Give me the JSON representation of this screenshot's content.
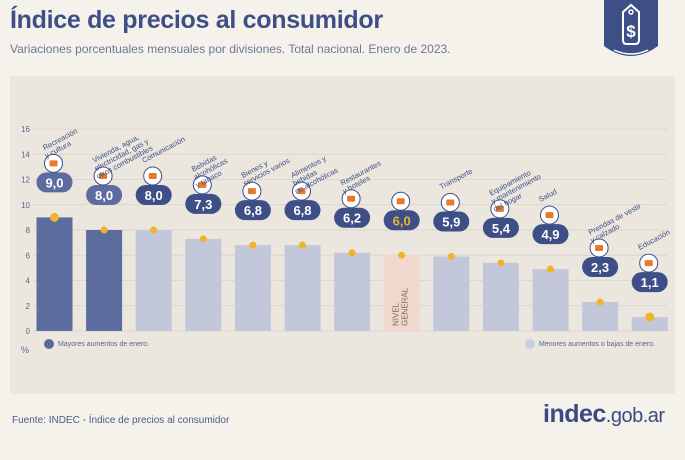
{
  "header": {
    "title": "Índice de precios al consumidor",
    "subtitle": "Variaciones porcentuales mensuales por divisiones. Total nacional. Enero de 2023."
  },
  "legend": {
    "high": "Mayores aumentos de enero.",
    "low": "Menores aumentos o bajas de enero."
  },
  "footer": {
    "source": "Fuente: INDEC - Índice de precios al consumidor",
    "logo_main": "indec",
    "logo_suffix": ".gob.ar"
  },
  "colors": {
    "high": "#5c6c9e",
    "low": "#c2c8d9",
    "general": "#f1d8cd",
    "badge": "#3d4f86",
    "dot": "#f0b429",
    "accent": "#e47a2a"
  },
  "chart_data": {
    "type": "bar",
    "unit_label": "%",
    "ylim": [
      0,
      16
    ],
    "yticks": [
      0,
      2,
      4,
      6,
      8,
      10,
      12,
      14,
      16
    ],
    "grid": true,
    "categories": [
      "Recreación y cultura",
      "Vivienda, agua, electricidad, gas y otros combustibles",
      "Comunicación",
      "Bebidas alcohólicas y tabaco",
      "Bienes y servicios varios",
      "Alimentos y bebidas no alcohólicas",
      "Restaurantes y hoteles",
      "NIVEL GENERAL",
      "Transporte",
      "Equipamiento y mantenimiento del hogar",
      "Salud",
      "Prendas de vestir y calzado",
      "Educación"
    ],
    "label_lines": [
      [
        "Recreación",
        "y cultura"
      ],
      [
        "Vivienda, agua,",
        "electricidad, gas y",
        "otros combustibles"
      ],
      [
        "Comunicación"
      ],
      [
        "Bebidas",
        "alcohólicas",
        "y tabaco"
      ],
      [
        "Bienes y",
        "servicios varios"
      ],
      [
        "Alimentos y",
        "bebidas",
        "no alcohólicas"
      ],
      [
        "Restaurantes",
        "y hoteles"
      ],
      [
        "NIVEL",
        "GENERAL"
      ],
      [
        "Transporte"
      ],
      [
        "Equipamiento",
        "y mantenimiento",
        "del hogar"
      ],
      [
        "Salud"
      ],
      [
        "Prendas de vestir",
        "y calzado"
      ],
      [
        "Educación"
      ]
    ],
    "values": [
      9.0,
      8.0,
      8.0,
      7.3,
      6.8,
      6.8,
      6.2,
      6.0,
      5.9,
      5.4,
      4.9,
      2.3,
      1.1
    ],
    "value_labels": [
      "9,0",
      "8,0",
      "8,0",
      "7,3",
      "6,8",
      "6,8",
      "6,2",
      "6,0",
      "5,9",
      "5,4",
      "4,9",
      "2,3",
      "1,1"
    ],
    "groups": [
      "high",
      "high",
      "low",
      "low",
      "low",
      "low",
      "low",
      "general",
      "low",
      "low",
      "low",
      "low",
      "low"
    ]
  }
}
